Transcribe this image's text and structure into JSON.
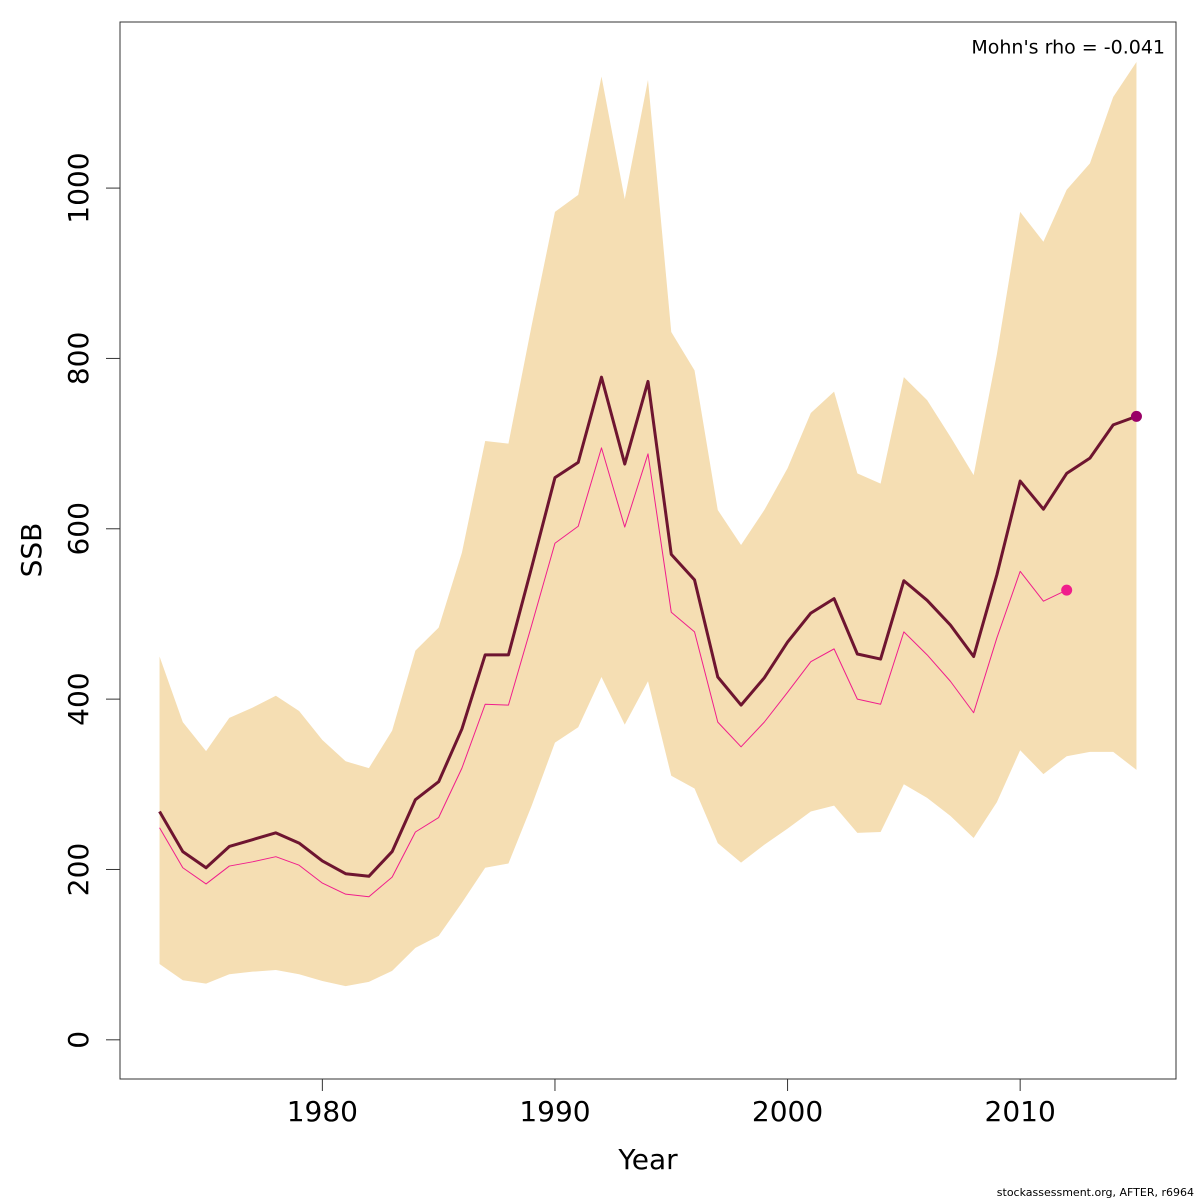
{
  "chart_data": {
    "type": "line",
    "xlabel": "Year",
    "ylabel": "SSB",
    "annotation": "Mohn's rho = -0.041",
    "footer": "stockassessment.org, AFTER, r6964",
    "x": [
      1973,
      1974,
      1975,
      1976,
      1977,
      1978,
      1979,
      1980,
      1981,
      1982,
      1983,
      1984,
      1985,
      1986,
      1987,
      1988,
      1989,
      1990,
      1991,
      1992,
      1993,
      1994,
      1995,
      1996,
      1997,
      1998,
      1999,
      2000,
      2001,
      2002,
      2003,
      2004,
      2005,
      2006,
      2007,
      2008,
      2009,
      2010,
      2011,
      2012,
      2013,
      2014,
      2015
    ],
    "band": {
      "color": "#f5deb3",
      "upper": [
        450,
        373,
        339,
        378,
        390,
        404,
        386,
        352,
        327,
        319,
        363,
        457,
        484,
        572,
        703,
        700,
        839,
        972,
        992,
        1131,
        987,
        1127,
        831,
        786,
        622,
        581,
        622,
        671,
        736,
        761,
        665,
        653,
        778,
        751,
        708,
        663,
        805,
        972,
        937,
        998,
        1029,
        1107,
        1148
      ],
      "lower": [
        89,
        70,
        66,
        77,
        80,
        82,
        77,
        69,
        63,
        68,
        81,
        108,
        122,
        161,
        202,
        207,
        275,
        349,
        367,
        426,
        370,
        421,
        310,
        295,
        231,
        208,
        229,
        248,
        268,
        275,
        243,
        244,
        300,
        284,
        263,
        237,
        279,
        340,
        312,
        333,
        338,
        338,
        317
      ]
    },
    "series": [
      {
        "color": "#6e1530",
        "marker_color": "#990066",
        "width": 3,
        "values": [
          268,
          221,
          202,
          227,
          235,
          243,
          231,
          210,
          195,
          192,
          221,
          282,
          303,
          365,
          452,
          452,
          555,
          660,
          678,
          778,
          676,
          773,
          570,
          540,
          426,
          393,
          425,
          467,
          501,
          518,
          453,
          447,
          539,
          516,
          487,
          450,
          546,
          656,
          623,
          665,
          683,
          722,
          732
        ]
      },
      {
        "color": "#f01e8c",
        "marker_color": "#f01e8c",
        "width": 1,
        "values": [
          249,
          202,
          183,
          204,
          209,
          215,
          205,
          184,
          171,
          168,
          191,
          244,
          261,
          319,
          394,
          393,
          487,
          583,
          603,
          695,
          602,
          688,
          502,
          479,
          373,
          344,
          373,
          408,
          444,
          459,
          400,
          394,
          479,
          452,
          421,
          384,
          472,
          550,
          515,
          528,
          null,
          null,
          null
        ]
      }
    ],
    "end_markers": true,
    "xlim": [
      1971.3,
      2016.7
    ],
    "ylim": [
      -46,
      1195
    ],
    "xticks": [
      1980,
      1990,
      2000,
      2010
    ],
    "yticks": [
      0,
      200,
      400,
      600,
      800,
      1000
    ]
  }
}
